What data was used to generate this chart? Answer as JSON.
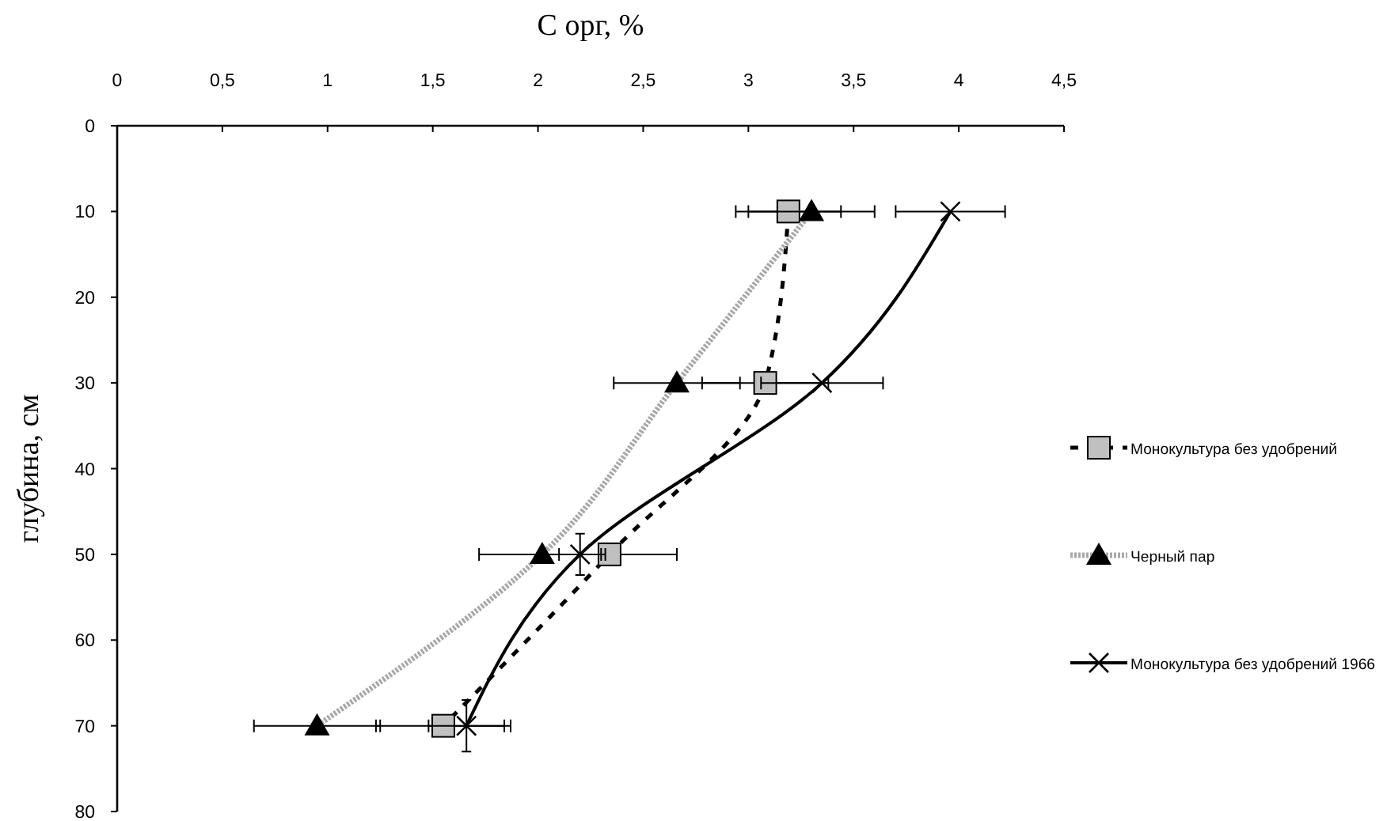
{
  "chart_data": {
    "type": "line",
    "xlabel": "C орг, %",
    "ylabel": "глубина, см",
    "xlim": [
      0,
      4.5
    ],
    "xticks": [
      0,
      {
        "value": 0.5,
        "label": "0,5"
      },
      1,
      {
        "value": 1.5,
        "label": "1,5"
      },
      2,
      {
        "value": 2.5,
        "label": "2,5"
      },
      3,
      {
        "value": 3.5,
        "label": "3,5"
      },
      4,
      {
        "value": 4.5,
        "label": "4,5"
      }
    ],
    "ylim": [
      80,
      0
    ],
    "yticks": [
      0,
      10,
      20,
      30,
      40,
      50,
      60,
      70,
      80
    ],
    "grid": false,
    "legend": "right",
    "series": [
      {
        "name": "Монокультура без удобрений",
        "color": "#000000",
        "marker": "square",
        "line_style": "dashed",
        "x": [
          3.19,
          3.08,
          2.34,
          1.55
        ],
        "values": [
          10,
          30,
          50,
          70
        ],
        "xerrors": [
          0.25,
          0.3,
          0.32,
          0.32
        ]
      },
      {
        "name": "Черный пар",
        "color": "#000000",
        "marker": "triangle",
        "line_style": "dotted",
        "x": [
          3.3,
          2.66,
          2.02,
          0.95
        ],
        "values": [
          10,
          30,
          50,
          70
        ],
        "xerrors": [
          0.3,
          0.3,
          0.3,
          0.3
        ]
      },
      {
        "name": "Монокультура без удобрений 1966",
        "color": "#000000",
        "marker": "cross",
        "line_style": "solid",
        "x": [
          3.96,
          3.35,
          2.2,
          1.66
        ],
        "values": [
          10,
          30,
          50,
          70
        ],
        "xerrors": [
          0.26,
          0.29,
          0.1,
          0.18
        ],
        "errors": [
          null,
          null,
          2.4,
          3
        ]
      }
    ]
  }
}
